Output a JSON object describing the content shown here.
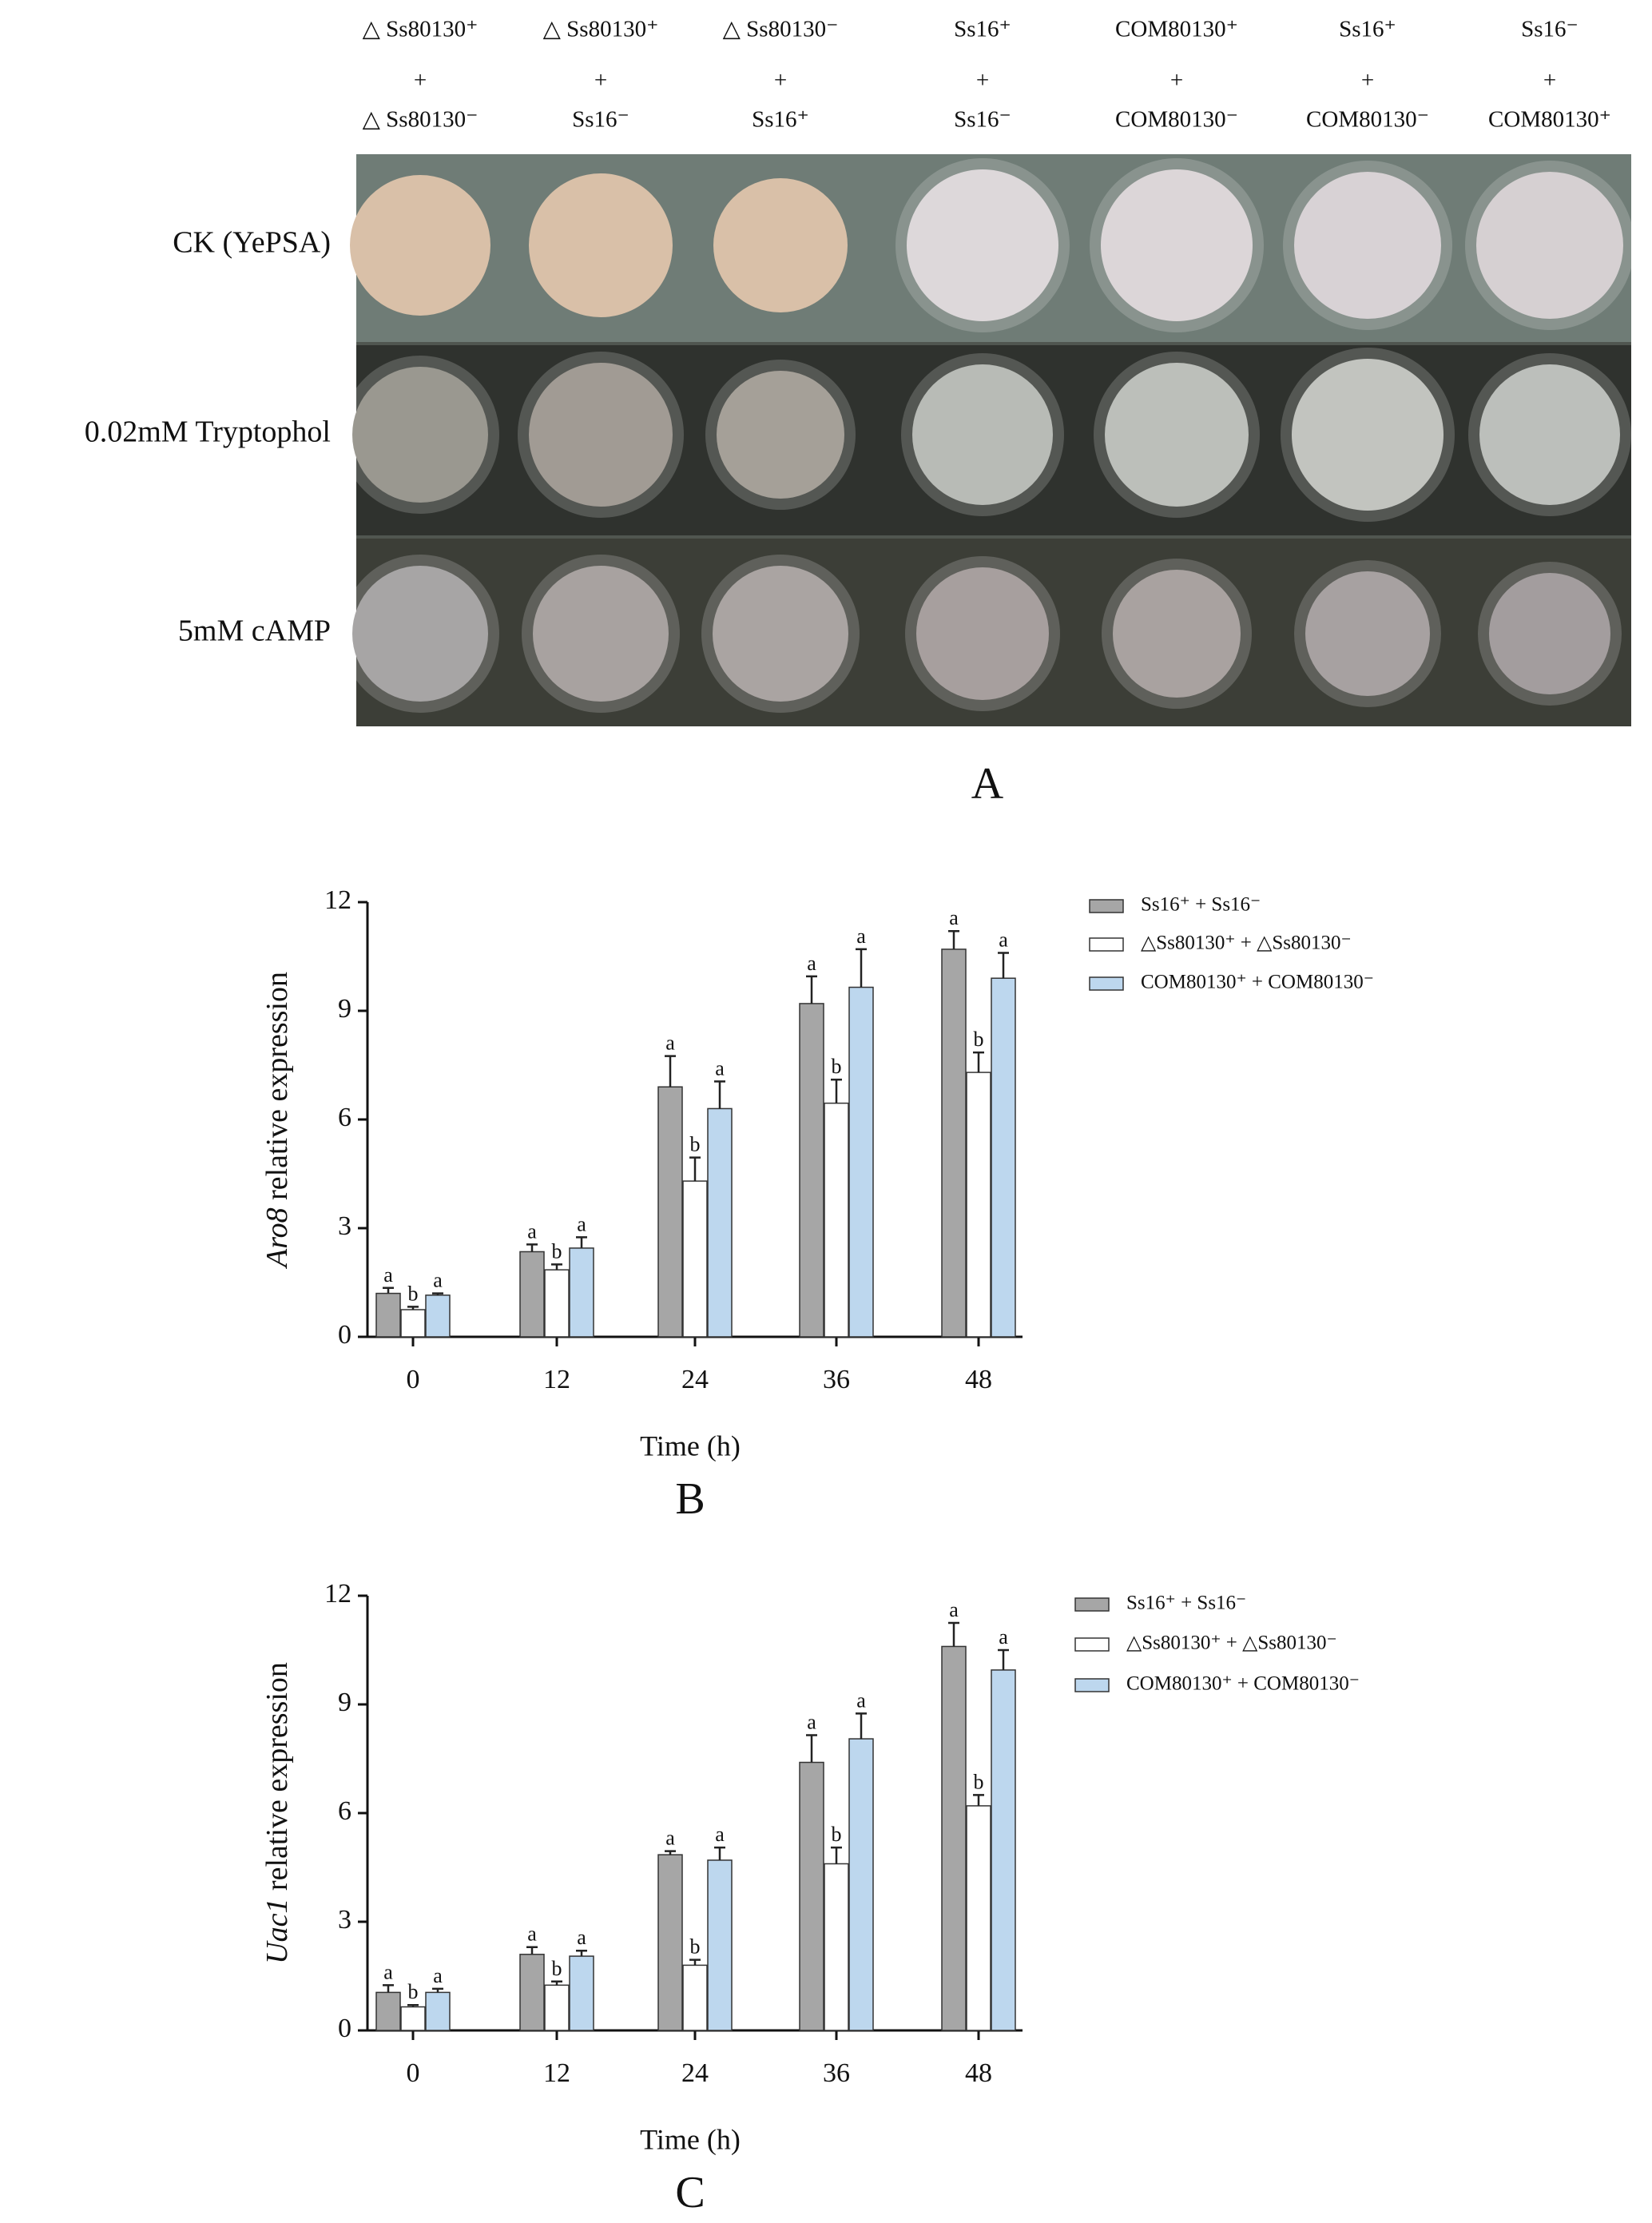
{
  "photo_panel": {
    "label": "A",
    "columns": [
      {
        "top": "△ Ss80130⁺",
        "plus": "+",
        "bottom": "△ Ss80130⁻"
      },
      {
        "top": "△ Ss80130⁺",
        "plus": "+",
        "bottom": "Ss16⁻"
      },
      {
        "top": "△ Ss80130⁻",
        "plus": "+",
        "bottom": "Ss16⁺"
      },
      {
        "top": "Ss16⁺",
        "plus": "+",
        "bottom": "Ss16⁻"
      },
      {
        "top": "COM80130⁺",
        "plus": "+",
        "bottom": "COM80130⁻"
      },
      {
        "top": "Ss16⁺",
        "plus": "+",
        "bottom": "COM80130⁻"
      },
      {
        "top": "Ss16⁻",
        "plus": "+",
        "bottom": "COM80130⁺"
      }
    ],
    "rows": [
      "CK (YePSA)",
      "0.02mM Tryptophol",
      "5mM cAMP"
    ]
  },
  "chart_data": [
    {
      "type": "bar",
      "panel_label": "B",
      "ylabel_italic": "Aro8",
      "ylabel": "relative expression",
      "xlabel": "Time (h)",
      "categories": [
        "0",
        "12",
        "24",
        "36",
        "48"
      ],
      "ylim": [
        0,
        12
      ],
      "yticks": [
        0,
        3,
        6,
        9,
        12
      ],
      "series": [
        {
          "name": "Ss16⁺ + Ss16⁻",
          "color": "#a6a6a6",
          "values": [
            1.2,
            2.35,
            6.9,
            9.2,
            10.7
          ],
          "errors": [
            0.15,
            0.2,
            0.85,
            0.75,
            0.5
          ],
          "letters": [
            "a",
            "a",
            "a",
            "a",
            "a"
          ]
        },
        {
          "name": "△Ss80130⁺ + △Ss80130⁻",
          "color": "#ffffff",
          "values": [
            0.75,
            1.85,
            4.3,
            6.45,
            7.3
          ],
          "errors": [
            0.08,
            0.15,
            0.65,
            0.65,
            0.55
          ],
          "letters": [
            "b",
            "b",
            "b",
            "b",
            "b"
          ]
        },
        {
          "name": "COM80130⁺ + COM80130⁻",
          "color": "#bdd7ee",
          "values": [
            1.15,
            2.45,
            6.3,
            9.65,
            9.9
          ],
          "errors": [
            0.05,
            0.3,
            0.75,
            1.05,
            0.7
          ],
          "letters": [
            "a",
            "a",
            "a",
            "a",
            "a"
          ]
        }
      ]
    },
    {
      "type": "bar",
      "panel_label": "C",
      "ylabel_italic": "Uac1",
      "ylabel": "relative expression",
      "xlabel": "Time (h)",
      "categories": [
        "0",
        "12",
        "24",
        "36",
        "48"
      ],
      "ylim": [
        0,
        12
      ],
      "yticks": [
        0,
        3,
        6,
        9,
        12
      ],
      "series": [
        {
          "name": "Ss16⁺ + Ss16⁻",
          "color": "#a6a6a6",
          "values": [
            1.05,
            2.1,
            4.85,
            7.4,
            10.6
          ],
          "errors": [
            0.2,
            0.2,
            0.1,
            0.75,
            0.65
          ],
          "letters": [
            "a",
            "a",
            "a",
            "a",
            "a"
          ]
        },
        {
          "name": "△Ss80130⁺ + △Ss80130⁻",
          "color": "#ffffff",
          "values": [
            0.65,
            1.25,
            1.8,
            4.6,
            6.2
          ],
          "errors": [
            0.05,
            0.1,
            0.15,
            0.45,
            0.3
          ],
          "letters": [
            "b",
            "b",
            "b",
            "b",
            "b"
          ]
        },
        {
          "name": "COM80130⁺ + COM80130⁻",
          "color": "#bdd7ee",
          "values": [
            1.05,
            2.05,
            4.7,
            8.05,
            9.95
          ],
          "errors": [
            0.1,
            0.15,
            0.35,
            0.7,
            0.55
          ],
          "letters": [
            "a",
            "a",
            "a",
            "a",
            "a"
          ]
        }
      ]
    }
  ]
}
